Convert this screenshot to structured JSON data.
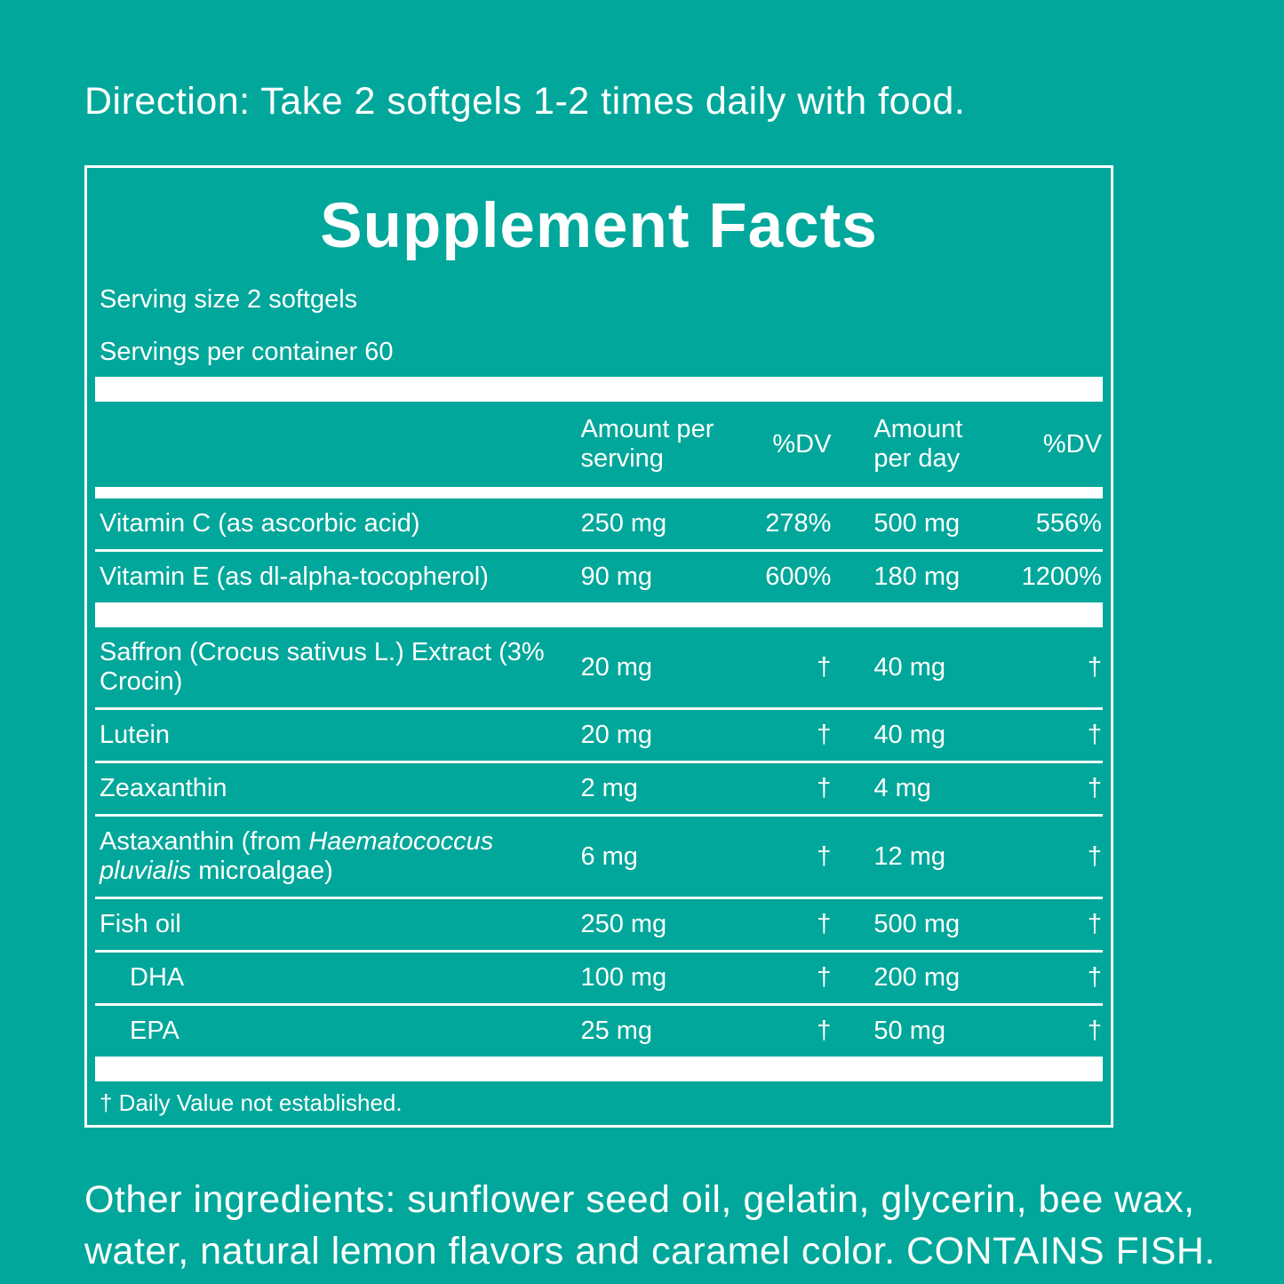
{
  "colors": {
    "background": "#00A79A",
    "text": "#FFFFFF",
    "divider": "#FFFFFF"
  },
  "direction": "Direction: Take 2 softgels 1-2 times daily with food.",
  "panel": {
    "title": "Supplement Facts",
    "serving_size": "Serving size 2 softgels",
    "servings_per_container": "Servings per container 60",
    "columns": {
      "ingredient": "",
      "amount_per_serving": "Amount per serving",
      "dv_serving": "%DV",
      "amount_per_day": "Amount per day",
      "dv_day": "%DV"
    },
    "rows": [
      {
        "name": [
          {
            "t": "Vitamin C (as ascorbic acid)"
          }
        ],
        "indent": false,
        "amount_serving": "250 mg",
        "dv_serving": "278%",
        "amount_day": "500 mg",
        "dv_day": "556%",
        "bar_after": false
      },
      {
        "name": [
          {
            "t": "Vitamin E (as dl-alpha-tocopherol)"
          }
        ],
        "indent": false,
        "amount_serving": "90 mg",
        "dv_serving": "600%",
        "amount_day": "180 mg",
        "dv_day": "1200%",
        "bar_after": true
      },
      {
        "name": [
          {
            "t": "Saffron (Crocus sativus L.) Extract (3% Crocin)"
          }
        ],
        "indent": false,
        "amount_serving": "20 mg",
        "dv_serving": "†",
        "amount_day": "40 mg",
        "dv_day": "†",
        "bar_after": false
      },
      {
        "name": [
          {
            "t": "Lutein"
          }
        ],
        "indent": false,
        "amount_serving": "20 mg",
        "dv_serving": "†",
        "amount_day": "40 mg",
        "dv_day": "†",
        "bar_after": false
      },
      {
        "name": [
          {
            "t": "Zeaxanthin"
          }
        ],
        "indent": false,
        "amount_serving": "2 mg",
        "dv_serving": "†",
        "amount_day": "4 mg",
        "dv_day": "†",
        "bar_after": false
      },
      {
        "name": [
          {
            "t": "Astaxanthin (from "
          },
          {
            "t": "Haematococcus pluvialis",
            "italic": true
          },
          {
            "t": " microalgae)"
          }
        ],
        "indent": false,
        "amount_serving": "6 mg",
        "dv_serving": "†",
        "amount_day": "12 mg",
        "dv_day": "†",
        "bar_after": false
      },
      {
        "name": [
          {
            "t": "Fish oil"
          }
        ],
        "indent": false,
        "amount_serving": "250 mg",
        "dv_serving": "†",
        "amount_day": "500 mg",
        "dv_day": "†",
        "bar_after": false
      },
      {
        "name": [
          {
            "t": "DHA"
          }
        ],
        "indent": true,
        "amount_serving": "100 mg",
        "dv_serving": "†",
        "amount_day": "200 mg",
        "dv_day": "†",
        "bar_after": false
      },
      {
        "name": [
          {
            "t": "EPA"
          }
        ],
        "indent": true,
        "amount_serving": "25 mg",
        "dv_serving": "†",
        "amount_day": "50 mg",
        "dv_day": "†",
        "bar_after": true
      }
    ],
    "footnote": "† Daily Value not established."
  },
  "other_ingredients": "Other ingredients: sunflower seed oil, gelatin, glycerin, bee wax, water, natural lemon flavors and caramel color. CONTAINS FISH."
}
